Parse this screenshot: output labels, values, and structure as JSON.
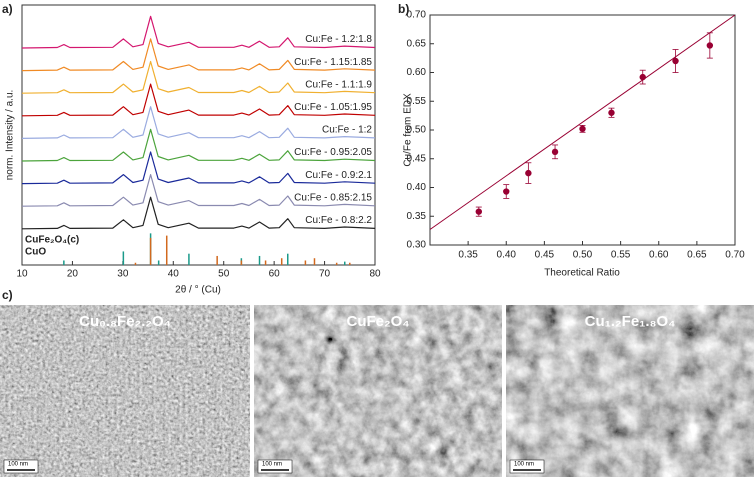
{
  "chart_data": [
    {
      "type": "line",
      "panel": "a)",
      "xlabel": "2θ / ° (Cu)",
      "ylabel": "norm. Intensity / a.u.",
      "xlim": [
        10,
        80
      ],
      "xticks": [
        10,
        20,
        30,
        40,
        50,
        60,
        70,
        80
      ],
      "ylim": [
        0,
        11.5
      ],
      "x": [
        10,
        17,
        18.3,
        19.5,
        28,
        30.1,
        32,
        34,
        35.5,
        37,
        39,
        43.1,
        45,
        52,
        53.6,
        55,
        57.1,
        59,
        61,
        62.7,
        64,
        70,
        74,
        80
      ],
      "series": [
        {
          "name": "Cu:Fe - 1.2:1.8",
          "color": "#d4176f",
          "values": [
            9.6,
            9.62,
            9.75,
            9.62,
            9.63,
            10,
            9.65,
            9.75,
            11,
            9.8,
            9.65,
            9.85,
            9.63,
            9.63,
            9.72,
            9.63,
            9.9,
            9.63,
            9.65,
            10.05,
            9.65,
            9.62,
            9.68,
            9.62
          ]
        },
        {
          "name": "Cu:Fe - 1.15:1.85",
          "color": "#f08a24",
          "values": [
            8.6,
            8.62,
            8.75,
            8.62,
            8.63,
            9,
            8.65,
            8.75,
            10,
            8.8,
            8.65,
            8.85,
            8.63,
            8.63,
            8.72,
            8.63,
            8.9,
            8.63,
            8.65,
            9.05,
            8.65,
            8.62,
            8.68,
            8.62
          ]
        },
        {
          "name": "Cu:Fe - 1.1:1.9",
          "color": "#f0b030",
          "values": [
            7.6,
            7.62,
            7.75,
            7.62,
            7.63,
            8,
            7.65,
            7.75,
            9,
            7.8,
            7.65,
            7.85,
            7.63,
            7.63,
            7.72,
            7.63,
            7.9,
            7.63,
            7.65,
            8.05,
            7.65,
            7.62,
            7.68,
            7.62
          ]
        },
        {
          "name": "Cu:Fe - 1.05:1.95",
          "color": "#c00000",
          "values": [
            6.6,
            6.62,
            6.75,
            6.62,
            6.63,
            7,
            6.65,
            6.75,
            8,
            6.8,
            6.65,
            6.85,
            6.63,
            6.63,
            6.72,
            6.63,
            6.9,
            6.63,
            6.65,
            7.05,
            6.65,
            6.62,
            6.68,
            6.62
          ]
        },
        {
          "name": "Cu:Fe - 1:2",
          "color": "#9aabe0",
          "values": [
            5.6,
            5.62,
            5.75,
            5.62,
            5.63,
            6,
            5.65,
            5.75,
            7,
            5.8,
            5.65,
            5.85,
            5.63,
            5.63,
            5.72,
            5.63,
            5.9,
            5.63,
            5.65,
            6.05,
            5.65,
            5.62,
            5.68,
            5.62
          ]
        },
        {
          "name": "Cu:Fe - 0.95:2.05",
          "color": "#4ca43c",
          "values": [
            4.6,
            4.62,
            4.75,
            4.62,
            4.63,
            5,
            4.65,
            4.75,
            6,
            4.8,
            4.65,
            4.85,
            4.63,
            4.63,
            4.72,
            4.63,
            4.9,
            4.63,
            4.65,
            5.05,
            4.65,
            4.62,
            4.68,
            4.62
          ]
        },
        {
          "name": "Cu:Fe - 0.9:2.1",
          "color": "#1a2a9a",
          "values": [
            3.6,
            3.62,
            3.75,
            3.62,
            3.63,
            4,
            3.65,
            3.75,
            5,
            3.8,
            3.65,
            3.85,
            3.63,
            3.63,
            3.72,
            3.63,
            3.9,
            3.63,
            3.65,
            4.05,
            3.65,
            3.62,
            3.68,
            3.62
          ]
        },
        {
          "name": "Cu:Fe - 0.85:2.15",
          "color": "#8a8ab0",
          "values": [
            2.6,
            2.62,
            2.75,
            2.62,
            2.63,
            3,
            2.65,
            2.75,
            4,
            2.8,
            2.65,
            2.85,
            2.63,
            2.63,
            2.72,
            2.63,
            2.9,
            2.63,
            2.65,
            3.05,
            2.65,
            2.62,
            2.68,
            2.62
          ]
        },
        {
          "name": "Cu:Fe - 0.8:2.2",
          "color": "#222222",
          "values": [
            1.6,
            1.62,
            1.75,
            1.62,
            1.63,
            2,
            1.65,
            1.75,
            3,
            1.8,
            1.65,
            1.85,
            1.63,
            1.63,
            1.72,
            1.63,
            1.9,
            1.63,
            1.65,
            2.05,
            1.65,
            1.62,
            1.68,
            1.62
          ]
        }
      ],
      "references": [
        {
          "name": "CuFe₂O₄(c)",
          "color": "#1a9a8a",
          "x": [
            18.3,
            30.1,
            35.5,
            37.1,
            43.1,
            53.5,
            57.1,
            62.7,
            74
          ],
          "values": [
            0.2,
            0.6,
            1.4,
            0.2,
            0.5,
            0.3,
            0.4,
            0.5,
            0.15
          ]
        },
        {
          "name": "CuO",
          "color": "#d2691e",
          "x": [
            32.5,
            35.5,
            38.7,
            48.7,
            53.5,
            58.3,
            61.5,
            66.2,
            68,
            72.4,
            75
          ],
          "values": [
            0.1,
            1.2,
            1.3,
            0.4,
            0.2,
            0.2,
            0.3,
            0.2,
            0.3,
            0.1,
            0.1
          ]
        }
      ]
    },
    {
      "type": "scatter",
      "panel": "b)",
      "xlabel": "Theoretical Ratio",
      "ylabel": "Cu/Fe from EDX",
      "color": "#990033",
      "xlim": [
        0.3,
        0.7
      ],
      "xticks": [
        0.35,
        {
          "value": 0.4,
          "label": "0.40"
        },
        0.45,
        {
          "value": 0.5,
          "label": "0.50"
        },
        0.55,
        {
          "value": 0.6,
          "label": "0.60"
        },
        0.65,
        {
          "value": 0.7,
          "label": "0.70"
        }
      ],
      "ylim": [
        0.3,
        0.7
      ],
      "yticks": [
        {
          "value": 0.3,
          "label": "0.30"
        },
        0.35,
        {
          "value": 0.4,
          "label": "0.40"
        },
        0.45,
        {
          "value": 0.5,
          "label": "0.50"
        },
        0.55,
        {
          "value": 0.6,
          "label": "0.60"
        },
        0.65,
        {
          "value": 0.7,
          "label": "0.70"
        }
      ],
      "x": [
        0.364,
        0.4,
        0.429,
        0.464,
        0.5,
        0.538,
        0.579,
        0.622,
        0.667
      ],
      "values": [
        0.358,
        0.393,
        0.425,
        0.462,
        0.502,
        0.53,
        0.592,
        0.62,
        0.647
      ],
      "errors": [
        0.008,
        0.012,
        0.018,
        0.012,
        0.006,
        0.008,
        0.012,
        0.02,
        0.022
      ],
      "fit": {
        "x": [
          0.3,
          0.7
        ],
        "values": [
          0.327,
          0.7
        ]
      }
    }
  ],
  "micrographs": {
    "panel": "c)",
    "images": [
      {
        "label": "Cu₀.₈Fe₂.₂O₄",
        "scale_bar": "100 nm"
      },
      {
        "label": "CuFe₂O₄",
        "scale_bar": "100 nm"
      },
      {
        "label": "Cu₁.₂Fe₁.₈O₄",
        "scale_bar": "100 nm"
      }
    ]
  }
}
